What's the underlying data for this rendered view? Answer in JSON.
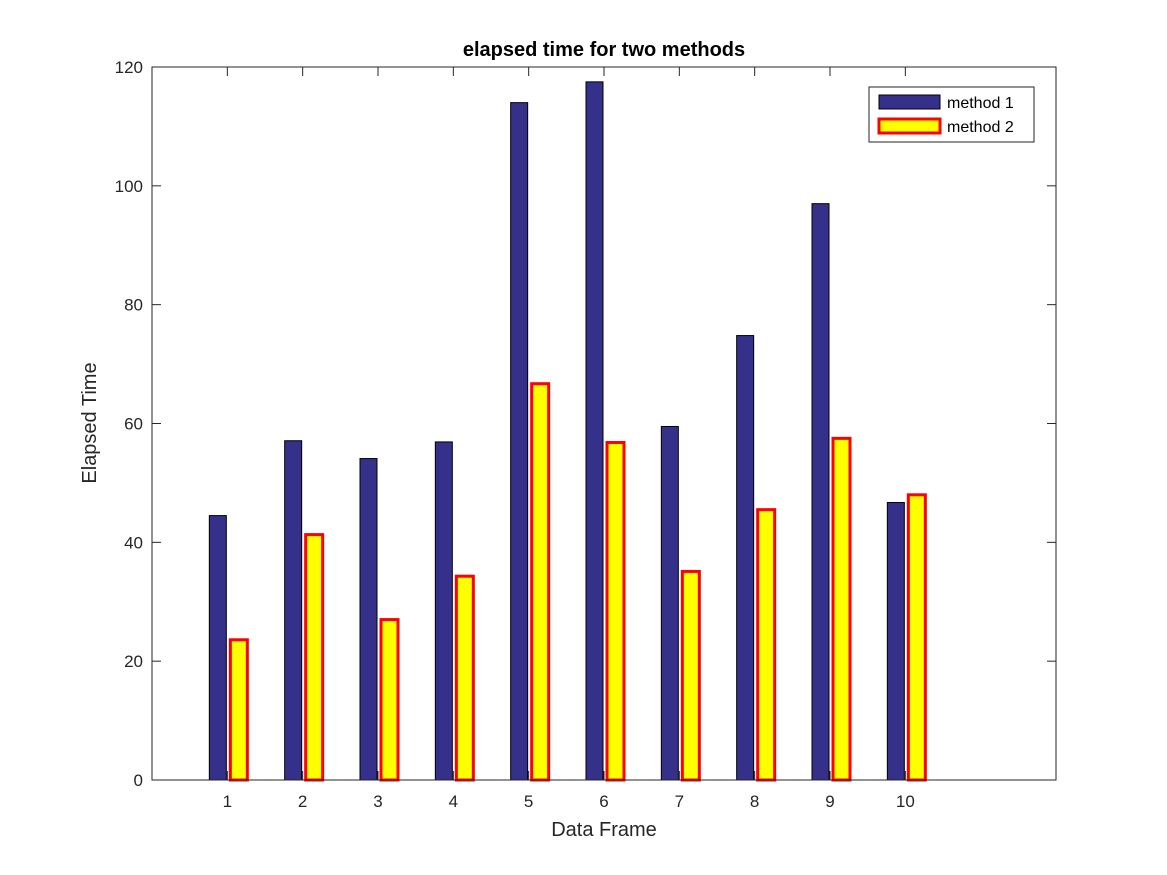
{
  "chart_data": {
    "type": "bar",
    "title": "elapsed time for two methods",
    "xlabel": "Data Frame",
    "ylabel": "Elapsed Time",
    "categories": [
      "1",
      "2",
      "3",
      "4",
      "5",
      "6",
      "7",
      "8",
      "9",
      "10"
    ],
    "x": [
      1,
      2,
      3,
      4,
      5,
      6,
      7,
      8,
      9,
      10
    ],
    "xlim": [
      0,
      12
    ],
    "ylim": [
      0,
      120
    ],
    "yticks": [
      "0",
      "20",
      "40",
      "60",
      "80",
      "100",
      "120"
    ],
    "grid": false,
    "legend_position": "top-right",
    "series": [
      {
        "name": "method 1",
        "values": [
          44.5,
          57.1,
          54.1,
          56.9,
          114.0,
          117.5,
          59.5,
          74.8,
          97.0,
          46.7
        ],
        "fill": "#35308a",
        "edge": "#000000"
      },
      {
        "name": "method 2",
        "values": [
          23.6,
          41.3,
          27.0,
          34.3,
          66.7,
          56.8,
          35.1,
          45.5,
          57.5,
          48.0
        ],
        "fill": "#ffff00",
        "edge": "#ff0000"
      }
    ]
  }
}
